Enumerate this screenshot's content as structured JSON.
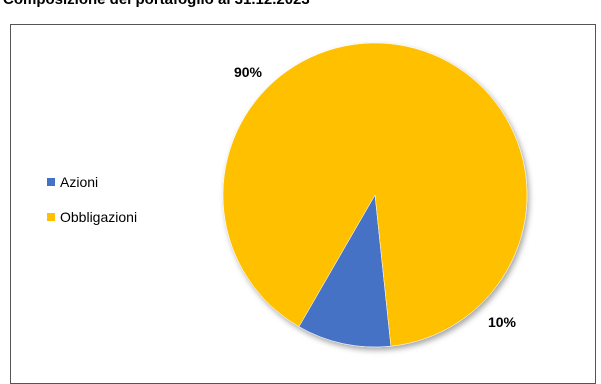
{
  "title": "Composizione del portafoglio al 31.12.2023",
  "chart_data": {
    "type": "pie",
    "title": "Composizione del portafoglio al 31.12.2023",
    "legend_position": "left",
    "slices": [
      {
        "label": "Azioni",
        "value": 10,
        "data_label": "10%",
        "color": "#4472C4"
      },
      {
        "label": "Obbligazioni",
        "value": 90,
        "data_label": "90%",
        "color": "#FFC000"
      }
    ]
  }
}
